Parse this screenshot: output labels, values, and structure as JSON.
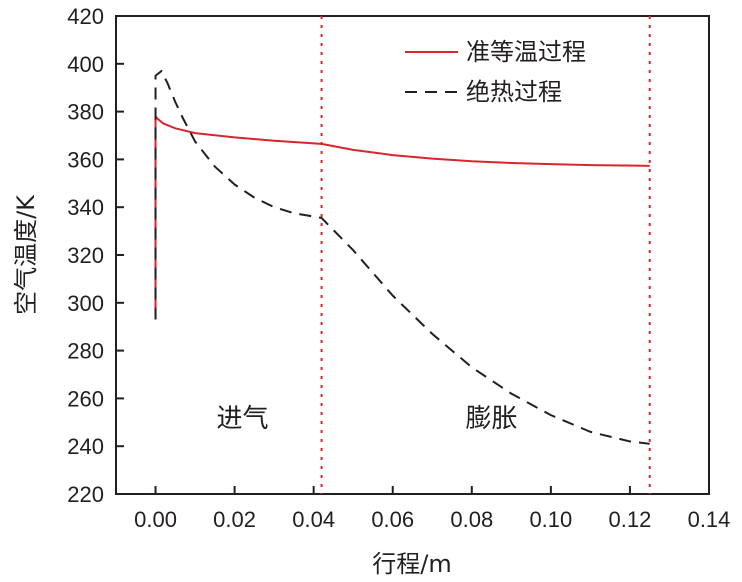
{
  "chart_data": {
    "type": "line",
    "title": "",
    "xlabel": "行程/m",
    "ylabel": "空气温度/K",
    "xlim": [
      -0.01,
      0.14
    ],
    "ylim": [
      220,
      420
    ],
    "xticks": [
      0.0,
      0.02,
      0.04,
      0.06,
      0.08,
      0.1,
      0.12,
      0.14
    ],
    "xtick_labels": [
      "0.00",
      "0.02",
      "0.04",
      "0.06",
      "0.08",
      "0.10",
      "0.12",
      "0.14"
    ],
    "yticks": [
      220,
      240,
      260,
      280,
      300,
      320,
      340,
      360,
      380,
      400,
      420
    ],
    "ytick_labels": [
      "220",
      "240",
      "260",
      "280",
      "300",
      "320",
      "340",
      "360",
      "380",
      "400",
      "420"
    ],
    "grid": false,
    "legend_position": "top-right",
    "series": [
      {
        "name": "准等温过程",
        "color": "#d7262e",
        "style": "solid",
        "x": [
          0,
          0,
          0,
          0.0005,
          0.002,
          0.005,
          0.01,
          0.02,
          0.03,
          0.042,
          0.05,
          0.06,
          0.07,
          0.08,
          0.09,
          0.1,
          0.11,
          0.125
        ],
        "y": [
          293,
          300,
          378,
          377,
          375,
          373,
          371,
          369.2,
          367.8,
          366.5,
          364,
          361.8,
          360.3,
          359.2,
          358.5,
          358,
          357.6,
          357.3
        ]
      },
      {
        "name": "绝热过程",
        "color": "#231f20",
        "style": "dashed",
        "x": [
          0,
          0,
          0,
          0.0015,
          0.003,
          0.005,
          0.007,
          0.01,
          0.015,
          0.02,
          0.025,
          0.03,
          0.035,
          0.042,
          0.05,
          0.06,
          0.07,
          0.08,
          0.09,
          0.1,
          0.11,
          0.12,
          0.125
        ],
        "y": [
          293,
          330,
          395,
          397,
          392,
          384,
          377,
          367.5,
          357,
          349.5,
          344,
          340,
          337.5,
          335.5,
          322,
          303,
          287,
          273,
          262,
          253,
          246,
          242,
          241
        ]
      }
    ],
    "reference_lines": [
      {
        "orientation": "vertical",
        "x": 0.042,
        "color": "#d7262e",
        "style": "dotted"
      },
      {
        "orientation": "vertical",
        "x": 0.125,
        "color": "#d7262e",
        "style": "dotted"
      }
    ],
    "annotations": [
      {
        "text": "进气",
        "x": 0.022,
        "y": 248
      },
      {
        "text": "膨胀",
        "x": 0.085,
        "y": 248
      }
    ]
  }
}
